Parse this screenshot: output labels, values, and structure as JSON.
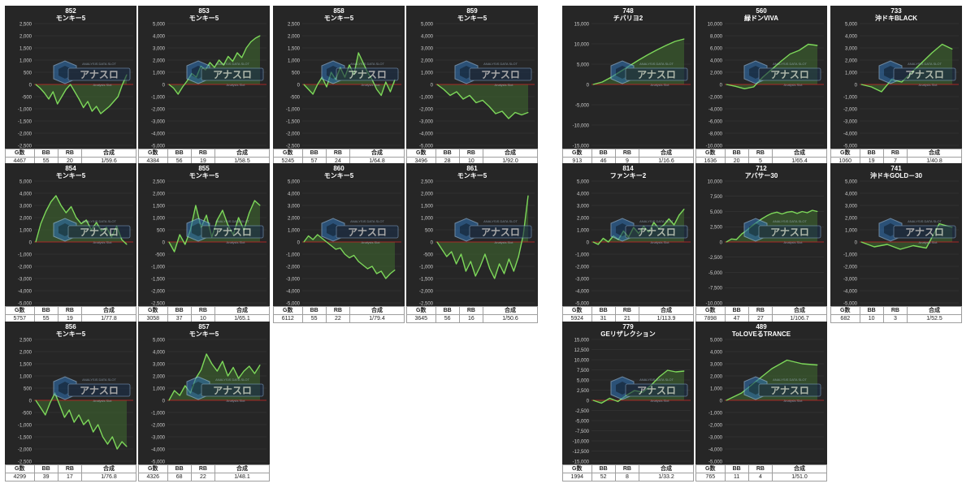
{
  "table_headers": [
    "G数",
    "BB",
    "RB",
    "合成"
  ],
  "logo": {
    "top": "ANALYSIS DATA SLOT",
    "main": "アナスロ",
    "sub": "Analysis Slot"
  },
  "colors": {
    "panel": "#262626",
    "line": "#7dd85a",
    "fill": "#3f6b30",
    "zero": "#cc2222",
    "grid": "#3a3a3a",
    "axis_text": "#cfcfcf"
  },
  "cards": [
    {
      "number": "852",
      "name": "モンキー5",
      "g": "4467",
      "bb": "55",
      "rb": "20",
      "ratio": "1/59.6",
      "chart_data": {
        "type": "area",
        "ylim": [
          -2500,
          2500
        ],
        "yticks": [
          "2,500",
          "2,000",
          "1,500",
          "1,000",
          "500",
          "0",
          "-500",
          "-1,000",
          "-1,500",
          "-2,000",
          "-2,500"
        ],
        "values": [
          0,
          -150,
          -350,
          -600,
          -300,
          -800,
          -500,
          -200,
          0,
          -300,
          -600,
          -950,
          -700,
          -1100,
          -900,
          -1200,
          -1050,
          -900,
          -700,
          -500,
          0,
          400
        ]
      }
    },
    {
      "number": "853",
      "name": "モンキー5",
      "g": "4384",
      "bb": "56",
      "rb": "19",
      "ratio": "1/58.5",
      "chart_data": {
        "type": "area",
        "ylim": [
          -5000,
          5000
        ],
        "yticks": [
          "5,000",
          "4,000",
          "3,000",
          "2,000",
          "1,000",
          "0",
          "-1,000",
          "-2,000",
          "-3,000",
          "-4,000",
          "-5,000"
        ],
        "values": [
          0,
          -300,
          -800,
          -200,
          300,
          900,
          600,
          1500,
          1200,
          1800,
          1400,
          2000,
          1600,
          2300,
          1900,
          2600,
          2200,
          3000,
          3500,
          3800,
          4000
        ]
      }
    },
    {
      "number": "858",
      "name": "モンキー5",
      "g": "5245",
      "bb": "57",
      "rb": "24",
      "ratio": "1/64.8",
      "chart_data": {
        "type": "area",
        "ylim": [
          -2500,
          2500
        ],
        "yticks": [
          "2,500",
          "2,000",
          "1,500",
          "1,000",
          "500",
          "0",
          "-500",
          "-1,000",
          "-1,500",
          "-2,000",
          "-2,500"
        ],
        "values": [
          0,
          -200,
          -400,
          0,
          300,
          -100,
          500,
          200,
          700,
          300,
          800,
          400,
          1300,
          900,
          500,
          200,
          -200,
          -450,
          100,
          -300,
          200
        ]
      }
    },
    {
      "number": "859",
      "name": "モンキー5",
      "g": "3496",
      "bb": "28",
      "rb": "10",
      "ratio": "1/92.0",
      "chart_data": {
        "type": "area",
        "ylim": [
          -5000,
          5000
        ],
        "yticks": [
          "5,000",
          "4,000",
          "3,000",
          "2,000",
          "1,000",
          "0",
          "-1,000",
          "-2,000",
          "-3,000",
          "-4,000",
          "-5,000"
        ],
        "values": [
          0,
          -400,
          -900,
          -600,
          -1200,
          -900,
          -1500,
          -1300,
          -1800,
          -2400,
          -2200,
          -2800,
          -2300,
          -2500,
          -2300
        ]
      }
    },
    {
      "number": "854",
      "name": "モンキー5",
      "g": "5757",
      "bb": "55",
      "rb": "19",
      "ratio": "1/77.8",
      "chart_data": {
        "type": "area",
        "ylim": [
          -5000,
          5000
        ],
        "yticks": [
          "5,000",
          "4,000",
          "3,000",
          "2,000",
          "1,000",
          "0",
          "-1,000",
          "-2,000",
          "-3,000",
          "-4,000",
          "-5,000"
        ],
        "values": [
          0,
          1500,
          2500,
          3300,
          3800,
          3000,
          2400,
          2900,
          2000,
          1500,
          1800,
          1000,
          1600,
          900,
          1200,
          400,
          1300,
          200,
          -200
        ]
      }
    },
    {
      "number": "855",
      "name": "モンキー5",
      "g": "3058",
      "bb": "37",
      "rb": "10",
      "ratio": "1/65.1",
      "chart_data": {
        "type": "area",
        "ylim": [
          -2500,
          2500
        ],
        "yticks": [
          "2,500",
          "2,000",
          "1,500",
          "1,000",
          "500",
          "0",
          "-500",
          "-1,000",
          "-1,500",
          "-2,000",
          "-2,500"
        ],
        "values": [
          0,
          -400,
          300,
          -100,
          500,
          1500,
          600,
          1100,
          200,
          900,
          1300,
          700,
          300,
          1000,
          500,
          1200,
          1700,
          1500
        ]
      }
    },
    {
      "number": "860",
      "name": "モンキー5",
      "g": "6112",
      "bb": "55",
      "rb": "22",
      "ratio": "1/79.4",
      "chart_data": {
        "type": "area",
        "ylim": [
          -5000,
          5000
        ],
        "yticks": [
          "5,000",
          "4,000",
          "3,000",
          "2,000",
          "1,000",
          "0",
          "-1,000",
          "-2,000",
          "-3,000",
          "-4,000",
          "-5,000"
        ],
        "values": [
          0,
          500,
          200,
          600,
          300,
          0,
          -300,
          -600,
          -500,
          -1000,
          -1300,
          -1100,
          -1600,
          -1900,
          -2200,
          -2000,
          -2600,
          -2400,
          -3000,
          -2600,
          -2300
        ]
      }
    },
    {
      "number": "861",
      "name": "モンキー5",
      "g": "3645",
      "bb": "56",
      "rb": "16",
      "ratio": "1/50.6",
      "chart_data": {
        "type": "area",
        "ylim": [
          -2500,
          2500
        ],
        "yticks": [
          "2,500",
          "2,000",
          "1,500",
          "1,000",
          "500",
          "0",
          "-500",
          "-1,000",
          "-1,500",
          "-2,000",
          "-2,500"
        ],
        "values": [
          0,
          -300,
          -600,
          -400,
          -900,
          -500,
          -1200,
          -800,
          -1400,
          -1000,
          -500,
          -1100,
          -1500,
          -900,
          -1300,
          -700,
          -1200,
          -600,
          300,
          1900
        ]
      }
    },
    {
      "number": "856",
      "name": "モンキー5",
      "g": "4299",
      "bb": "39",
      "rb": "17",
      "ratio": "1/76.8",
      "chart_data": {
        "type": "area",
        "ylim": [
          -2500,
          2500
        ],
        "yticks": [
          "2,500",
          "2,000",
          "1,500",
          "1,000",
          "500",
          "0",
          "-500",
          "-1,000",
          "-1,500",
          "-2,000",
          "-2,500"
        ],
        "values": [
          0,
          -300,
          -600,
          -100,
          300,
          -200,
          -700,
          -400,
          -900,
          -600,
          -1000,
          -800,
          -1300,
          -1000,
          -1500,
          -1800,
          -1500,
          -2000,
          -1700,
          -1900
        ]
      }
    },
    {
      "number": "857",
      "name": "モンキー5",
      "g": "4326",
      "bb": "68",
      "rb": "22",
      "ratio": "1/48.1",
      "chart_data": {
        "type": "area",
        "ylim": [
          -5000,
          5000
        ],
        "yticks": [
          "5,000",
          "4,000",
          "3,000",
          "2,000",
          "1,000",
          "0",
          "-1,000",
          "-2,000",
          "-3,000",
          "-4,000",
          "-5,000"
        ],
        "values": [
          0,
          800,
          400,
          1200,
          600,
          1800,
          2500,
          3800,
          3000,
          2400,
          3200,
          2000,
          2700,
          1800,
          2400,
          2800,
          2200,
          2900
        ]
      }
    },
    {
      "number": "748",
      "name": "チバリヨ2",
      "g": "913",
      "bb": "46",
      "rb": "9",
      "ratio": "1/16.6",
      "chart_data": {
        "type": "area",
        "ylim": [
          -15000,
          15000
        ],
        "yticks": [
          "15,000",
          "10,000",
          "5,000",
          "0",
          "-5,000",
          "-10,000",
          "-15,000"
        ],
        "values": [
          0,
          600,
          1800,
          3200,
          4600,
          6000,
          7300,
          8500,
          9600,
          10600,
          11200
        ]
      }
    },
    {
      "number": "560",
      "name": "緑ドンVIVA",
      "g": "1636",
      "bb": "20",
      "rb": "5",
      "ratio": "1/65.4",
      "chart_data": {
        "type": "area",
        "ylim": [
          -10000,
          10000
        ],
        "yticks": [
          "10,000",
          "8,000",
          "6,000",
          "4,000",
          "2,000",
          "0",
          "-2,000",
          "-4,000",
          "-6,000",
          "-8,000",
          "-10,000"
        ],
        "values": [
          0,
          -300,
          -700,
          -400,
          1200,
          2500,
          3800,
          5000,
          5600,
          6600,
          6400
        ]
      }
    },
    {
      "number": "733",
      "name": "沖ドキBLACK",
      "g": "1060",
      "bb": "19",
      "rb": "7",
      "ratio": "1/40.8",
      "chart_data": {
        "type": "area",
        "ylim": [
          -5000,
          5000
        ],
        "yticks": [
          "5,000",
          "4,000",
          "3,000",
          "2,000",
          "1,000",
          "0",
          "-1,000",
          "-2,000",
          "-3,000",
          "-4,000",
          "-5,000"
        ],
        "values": [
          0,
          -200,
          -600,
          400,
          200,
          1000,
          1800,
          2600,
          3300,
          2900
        ]
      }
    },
    {
      "number": "814",
      "name": "ファンキー2",
      "g": "5924",
      "bb": "31",
      "rb": "21",
      "ratio": "1/113.9",
      "chart_data": {
        "type": "area",
        "ylim": [
          -5000,
          5000
        ],
        "yticks": [
          "5,000",
          "4,000",
          "3,000",
          "2,000",
          "1,000",
          "0",
          "-1,000",
          "-2,000",
          "-3,000",
          "-4,000",
          "-5,000"
        ],
        "values": [
          0,
          -200,
          300,
          0,
          500,
          200,
          900,
          400,
          1200,
          700,
          1300,
          800,
          1600,
          1100,
          1400,
          1900,
          1400,
          2200,
          2700
        ]
      }
    },
    {
      "number": "712",
      "name": "アバサー30",
      "g": "7898",
      "bb": "47",
      "rb": "27",
      "ratio": "1/106.7",
      "chart_data": {
        "type": "area",
        "ylim": [
          -10000,
          10000
        ],
        "yticks": [
          "10,000",
          "7,500",
          "5,000",
          "2,500",
          "0",
          "-2,500",
          "-5,000",
          "-7,500",
          "-10,000"
        ],
        "values": [
          0,
          500,
          400,
          1300,
          1900,
          2600,
          3200,
          3800,
          4300,
          4700,
          4900,
          4600,
          4900,
          5000,
          4700,
          5000,
          4800,
          5200,
          5000
        ]
      }
    },
    {
      "number": "741",
      "name": "沖ドキGOLD－30",
      "g": "682",
      "bb": "10",
      "rb": "3",
      "ratio": "1/52.5",
      "chart_data": {
        "type": "area",
        "ylim": [
          -5000,
          5000
        ],
        "yticks": [
          "5,000",
          "4,000",
          "3,000",
          "2,000",
          "1,000",
          "0",
          "-1,000",
          "-2,000",
          "-3,000",
          "-4,000",
          "-5,000"
        ],
        "values": [
          0,
          -400,
          -200,
          -600,
          -300,
          -500,
          1500,
          1200
        ]
      }
    },
    {
      "number": "779",
      "name": "GEリザレクション",
      "g": "1994",
      "bb": "52",
      "rb": "8",
      "ratio": "1/33.2",
      "chart_data": {
        "type": "area",
        "ylim": [
          -15000,
          15000
        ],
        "yticks": [
          "15,000",
          "12,500",
          "10,000",
          "7,500",
          "5,000",
          "2,500",
          "0",
          "-2,500",
          "-5,000",
          "-7,500",
          "-10,000",
          "-12,500",
          "-15,000"
        ],
        "values": [
          0,
          -700,
          500,
          -300,
          1200,
          2400,
          2000,
          3700,
          5800,
          7400,
          7000,
          7200
        ]
      }
    },
    {
      "number": "489",
      "name": "ToLOVEるTRANCE",
      "g": "765",
      "bb": "11",
      "rb": "4",
      "ratio": "1/51.0",
      "chart_data": {
        "type": "area",
        "ylim": [
          -5000,
          5000
        ],
        "yticks": [
          "5,000",
          "4,000",
          "3,000",
          "2,000",
          "1,000",
          "0",
          "-1,000",
          "-2,000",
          "-3,000",
          "-4,000",
          "-5,000"
        ],
        "values": [
          0,
          600,
          1600,
          2600,
          3300,
          3000,
          2900
        ]
      }
    }
  ]
}
